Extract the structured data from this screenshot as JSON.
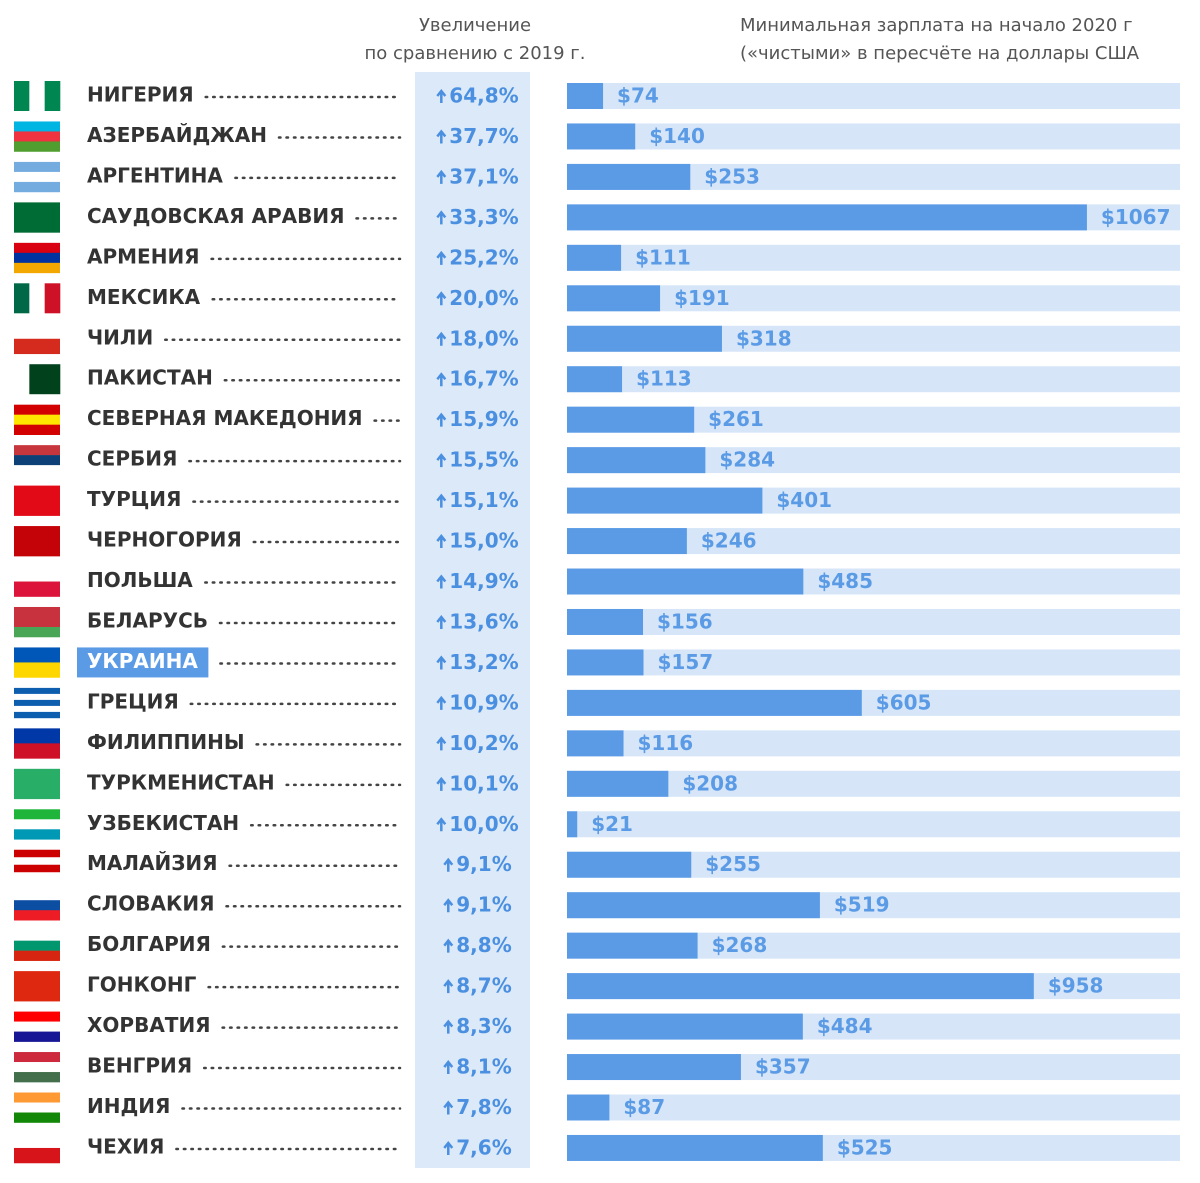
{
  "chart_data": {
    "type": "bar",
    "orientation": "horizontal",
    "categories": [
      "НИГЕРИЯ",
      "АЗЕРБАЙДЖАН",
      "АРГЕНТИНА",
      "САУДОВСКАЯ АРАВИЯ",
      "АРМЕНИЯ",
      "МЕКСИКА",
      "ЧИЛИ",
      "ПАКИСТАН",
      "СЕВЕРНАЯ МАКЕДОНИЯ",
      "СЕРБИЯ",
      "ТУРЦИЯ",
      "ЧЕРНОГОРИЯ",
      "ПОЛЬША",
      "БЕЛАРУСЬ",
      "УКРАИНА",
      "ГРЕЦИЯ",
      "ФИЛИППИНЫ",
      "ТУРКМЕНИСТАН",
      "УЗБЕКИСТАН",
      "МАЛАЙЗИЯ",
      "СЛОВАКИЯ",
      "БОЛГАРИЯ",
      "ГОНКОНГ",
      "ХОРВАТИЯ",
      "ВЕНГРИЯ",
      "ИНДИЯ",
      "ЧЕХИЯ"
    ],
    "highlighted_category": 14,
    "series": [
      {
        "name": "Увеличение\nпо сравнению с 2019 г.",
        "color": "#4a8fe0",
        "values": [
          64.8,
          37.7,
          37.1,
          33.3,
          25.2,
          20.0,
          18.0,
          16.7,
          15.9,
          15.5,
          15.1,
          15.0,
          14.9,
          13.6,
          13.2,
          10.9,
          10.2,
          10.1,
          10.0,
          9.1,
          9.1,
          8.8,
          8.7,
          8.3,
          8.1,
          7.8,
          7.6
        ],
        "value_labels": [
          "64,8%",
          "37,7%",
          "37,1%",
          "33,3%",
          "25,2%",
          "20,0%",
          "18,0%",
          "16,7%",
          "15,9%",
          "15,5%",
          "15,1%",
          "15,0%",
          "14,9%",
          "13,6%",
          "13,2%",
          "10,9%",
          "10,2%",
          "10,1%",
          "10,0%",
          "9,1%",
          "9,1%",
          "8,8%",
          "8,7%",
          "8,3%",
          "8,1%",
          "7,8%",
          "7,6%"
        ]
      },
      {
        "name": "Минимальная зарплата на начало 2020 г\n(«чистыми» в пересчёте на доллары США",
        "color": "#5b9be6",
        "values": [
          74,
          140,
          253,
          1067,
          111,
          191,
          318,
          113,
          261,
          284,
          401,
          246,
          485,
          156,
          157,
          605,
          116,
          208,
          21,
          255,
          519,
          268,
          958,
          484,
          357,
          87,
          525
        ],
        "value_labels": [
          "$74",
          "$140",
          "$253",
          "$1067",
          "$111",
          "$191",
          "$318",
          "$113",
          "$261",
          "$284",
          "$401",
          "$246",
          "$485",
          "$156",
          "$157",
          "$605",
          "$116",
          "$208",
          "$21",
          "$255",
          "$519",
          "$268",
          "$958",
          "$484",
          "$357",
          "$87",
          "$525"
        ]
      }
    ],
    "xlim": [
      0,
      1258
    ]
  }
}
